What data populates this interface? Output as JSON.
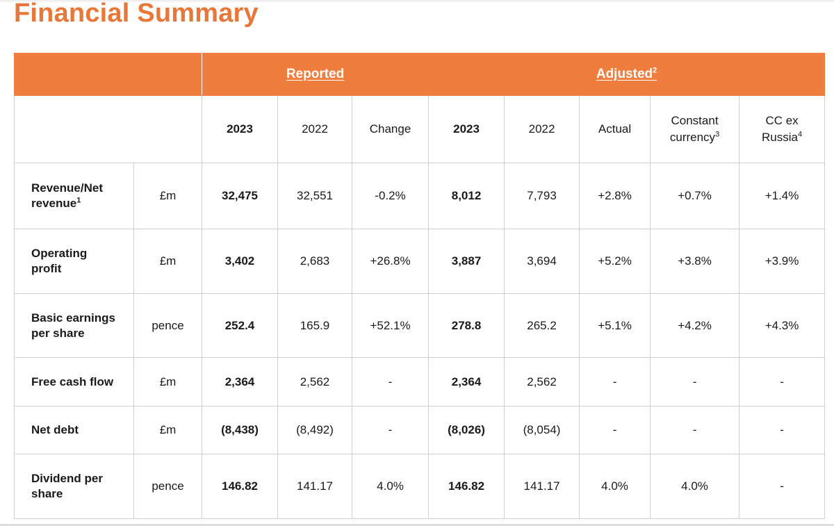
{
  "title": "Financial Summary",
  "header": {
    "reported_label": "Reported",
    "adjusted_label": "Adjusted",
    "adjusted_sup": "2"
  },
  "columns": {
    "rep_2023": "2023",
    "rep_2022": "2022",
    "rep_change": "Change",
    "adj_2023": "2023",
    "adj_2022": "2022",
    "adj_actual": "Actual",
    "adj_cc_line1": "Constant",
    "adj_cc_line2": "currency",
    "adj_cc_sup": "3",
    "adj_ccx_line1": "CC ex",
    "adj_ccx_line2": "Russia",
    "adj_ccx_sup": "4"
  },
  "rows": [
    {
      "line1": "Revenue/Net",
      "line2": "revenue",
      "sup": "1",
      "unit": "£m",
      "rep_2023": "32,475",
      "rep_2022": "32,551",
      "rep_change": "-0.2%",
      "adj_2023": "8,012",
      "adj_2022": "7,793",
      "actual": "+2.8%",
      "cc": "+0.7%",
      "cc_ex_russia": "+1.4%"
    },
    {
      "line1": "Operating",
      "line2": "profit",
      "sup": "",
      "unit": "£m",
      "rep_2023": "3,402",
      "rep_2022": "2,683",
      "rep_change": "+26.8%",
      "adj_2023": "3,887",
      "adj_2022": "3,694",
      "actual": "+5.2%",
      "cc": "+3.8%",
      "cc_ex_russia": "+3.9%"
    },
    {
      "line1": "Basic earnings",
      "line2": "per share",
      "sup": "",
      "unit": "pence",
      "rep_2023": "252.4",
      "rep_2022": "165.9",
      "rep_change": "+52.1%",
      "adj_2023": "278.8",
      "adj_2022": "265.2",
      "actual": "+5.1%",
      "cc": "+4.2%",
      "cc_ex_russia": "+4.3%"
    },
    {
      "line1": "Free cash flow",
      "line2": "",
      "sup": "",
      "unit": "£m",
      "rep_2023": "2,364",
      "rep_2022": "2,562",
      "rep_change": "-",
      "adj_2023": "2,364",
      "adj_2022": "2,562",
      "actual": "-",
      "cc": "-",
      "cc_ex_russia": "-"
    },
    {
      "line1": "Net debt",
      "line2": "",
      "sup": "",
      "unit": "£m",
      "rep_2023": "(8,438)",
      "rep_2022": "(8,492)",
      "rep_change": "-",
      "adj_2023": "(8,026)",
      "adj_2022": "(8,054)",
      "actual": "-",
      "cc": "-",
      "cc_ex_russia": "-"
    },
    {
      "line1": "Dividend per",
      "line2": "share",
      "sup": "",
      "unit": "pence",
      "rep_2023": "146.82",
      "rep_2022": "141.17",
      "rep_change": "4.0%",
      "adj_2023": "146.82",
      "adj_2022": "141.17",
      "actual": "4.0%",
      "cc": "4.0%",
      "cc_ex_russia": "-"
    }
  ],
  "colors": {
    "accent": "#ef7d3e",
    "title": "#e8773a",
    "grid": "#cfcfcf"
  }
}
